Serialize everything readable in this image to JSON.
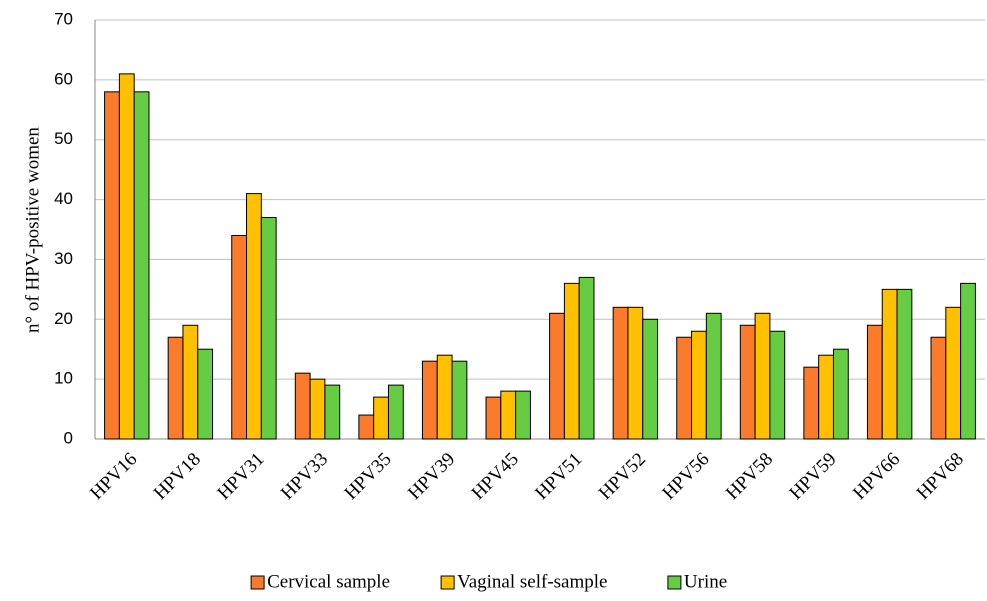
{
  "chart_data": {
    "type": "bar",
    "y_label": "n° of HPV-positive women",
    "categories": [
      "HPV16",
      "HPV18",
      "HPV31",
      "HPV33",
      "HPV35",
      "HPV39",
      "HPV45",
      "HPV51",
      "HPV52",
      "HPV56",
      "HPV58",
      "HPV59",
      "HPV66",
      "HPV68"
    ],
    "series": [
      {
        "name": "Cervical sample",
        "color": "#f97b2b",
        "values": [
          58,
          17,
          34,
          11,
          4,
          13,
          7,
          21,
          22,
          17,
          19,
          12,
          19,
          17
        ]
      },
      {
        "name": "Vaginal self-sample",
        "color": "#ffc000",
        "values": [
          61,
          19,
          41,
          10,
          7,
          14,
          8,
          26,
          22,
          18,
          21,
          14,
          25,
          22
        ]
      },
      {
        "name": "Urine",
        "color": "#66cc44",
        "values": [
          58,
          15,
          37,
          9,
          9,
          13,
          8,
          27,
          20,
          21,
          18,
          15,
          25,
          26
        ]
      }
    ],
    "ylim": [
      0,
      70
    ],
    "yticks": [
      0,
      10,
      20,
      30,
      40,
      50,
      60,
      70
    ],
    "grid": true,
    "legend": "bottom"
  }
}
